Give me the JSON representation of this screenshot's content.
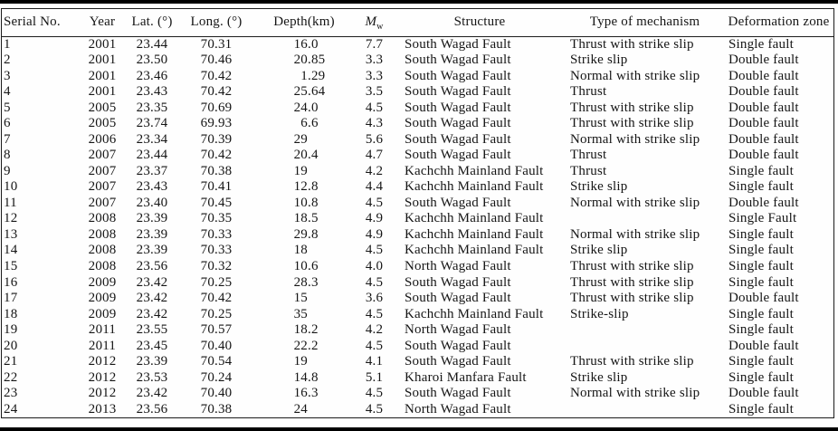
{
  "table": {
    "headers": {
      "serial": "Serial No.",
      "year": "Year",
      "lat": "Lat. (°)",
      "long": "Long. (°)",
      "depth": "Depth(km)",
      "mw_main": "M",
      "mw_sub": "w",
      "structure": "Structure",
      "mechanism": "Type of mechanism",
      "deformation": "Deformation zone"
    },
    "rows": [
      {
        "serial": "1",
        "year": "2001",
        "lat": "23.44",
        "long": "70.31",
        "depth": "16.0",
        "mw": "7.7",
        "structure": "South Wagad Fault",
        "mechanism": "Thrust with strike slip",
        "deformation": "Single fault"
      },
      {
        "serial": "2",
        "year": "2001",
        "lat": "23.50",
        "long": "70.46",
        "depth": "20.85",
        "mw": "3.3",
        "structure": "South Wagad Fault",
        "mechanism": "Strike slip",
        "deformation": "Double fault"
      },
      {
        "serial": "3",
        "year": "2001",
        "lat": "23.46",
        "long": "70.42",
        "depth": "1.29",
        "mw": "3.3",
        "structure": "South Wagad Fault",
        "mechanism": "Normal with strike slip",
        "deformation": "Double fault"
      },
      {
        "serial": "4",
        "year": "2001",
        "lat": "23.43",
        "long": "70.42",
        "depth": "25.64",
        "mw": "3.5",
        "structure": "South Wagad Fault",
        "mechanism": "Thrust",
        "deformation": "Double fault"
      },
      {
        "serial": "5",
        "year": "2005",
        "lat": "23.35",
        "long": "70.69",
        "depth": "24.0",
        "mw": "4.5",
        "structure": "South Wagad Fault",
        "mechanism": "Thrust with strike slip",
        "deformation": "Double fault"
      },
      {
        "serial": "6",
        "year": "2005",
        "lat": "23.74",
        "long": "69.93",
        "depth": "6.6",
        "mw": "4.3",
        "structure": "South Wagad Fault",
        "mechanism": "Thrust with strike slip",
        "deformation": "Double fault"
      },
      {
        "serial": "7",
        "year": "2006",
        "lat": "23.34",
        "long": "70.39",
        "depth": "29",
        "mw": "5.6",
        "structure": "South Wagad Fault",
        "mechanism": "Normal with strike slip",
        "deformation": "Double fault"
      },
      {
        "serial": "8",
        "year": "2007",
        "lat": "23.44",
        "long": "70.42",
        "depth": "20.4",
        "mw": "4.7",
        "structure": "South Wagad Fault",
        "mechanism": "Thrust",
        "deformation": "Double fault"
      },
      {
        "serial": "9",
        "year": "2007",
        "lat": "23.37",
        "long": "70.38",
        "depth": "19",
        "mw": "4.2",
        "structure": "Kachchh Mainland Fault",
        "mechanism": "Thrust",
        "deformation": "Single fault"
      },
      {
        "serial": "10",
        "year": "2007",
        "lat": "23.43",
        "long": "70.41",
        "depth": "12.8",
        "mw": "4.4",
        "structure": "Kachchh Mainland Fault",
        "mechanism": "Strike slip",
        "deformation": "Single fault"
      },
      {
        "serial": "11",
        "year": "2007",
        "lat": "23.40",
        "long": "70.45",
        "depth": "10.8",
        "mw": "4.5",
        "structure": "South Wagad Fault",
        "mechanism": "Normal with strike slip",
        "deformation": "Double fault"
      },
      {
        "serial": "12",
        "year": "2008",
        "lat": "23.39",
        "long": "70.35",
        "depth": "18.5",
        "mw": "4.9",
        "structure": "Kachchh Mainland Fault",
        "mechanism": "",
        "deformation": "Single Fault"
      },
      {
        "serial": "13",
        "year": "2008",
        "lat": "23.39",
        "long": "70.33",
        "depth": "29.8",
        "mw": "4.9",
        "structure": "Kachchh Mainland Fault",
        "mechanism": "Normal with strike slip",
        "deformation": "Single fault"
      },
      {
        "serial": "14",
        "year": "2008",
        "lat": "23.39",
        "long": "70.33",
        "depth": "18",
        "mw": "4.5",
        "structure": "Kachchh Mainland Fault",
        "mechanism": "Strike slip",
        "deformation": "Single fault"
      },
      {
        "serial": "15",
        "year": "2008",
        "lat": "23.56",
        "long": "70.32",
        "depth": "10.6",
        "mw": "4.0",
        "structure": "North Wagad Fault",
        "mechanism": "Thrust with strike slip",
        "deformation": "Single fault"
      },
      {
        "serial": "16",
        "year": "2009",
        "lat": "23.42",
        "long": "70.25",
        "depth": "28.3",
        "mw": "4.5",
        "structure": "South Wagad Fault",
        "mechanism": "Thrust with strike slip",
        "deformation": "Single fault"
      },
      {
        "serial": "17",
        "year": "2009",
        "lat": "23.42",
        "long": "70.42",
        "depth": "15",
        "mw": "3.6",
        "structure": "South Wagad Fault",
        "mechanism": "Thrust with strike slip",
        "deformation": "Double fault"
      },
      {
        "serial": "18",
        "year": "2009",
        "lat": "23.42",
        "long": "70.25",
        "depth": "35",
        "mw": "4.5",
        "structure": "Kachchh Mainland Fault",
        "mechanism": "Strike-slip",
        "deformation": "Single fault"
      },
      {
        "serial": "19",
        "year": "2011",
        "lat": "23.55",
        "long": "70.57",
        "depth": "18.2",
        "mw": "4.2",
        "structure": "North Wagad Fault",
        "mechanism": "",
        "deformation": "Single fault"
      },
      {
        "serial": "20",
        "year": "2011",
        "lat": "23.45",
        "long": "70.40",
        "depth": "22.2",
        "mw": "4.5",
        "structure": "South Wagad Fault",
        "mechanism": "",
        "deformation": "Double fault"
      },
      {
        "serial": "21",
        "year": "2012",
        "lat": "23.39",
        "long": "70.54",
        "depth": "19",
        "mw": "4.1",
        "structure": "South Wagad Fault",
        "mechanism": "Thrust with strike slip",
        "deformation": "Single fault"
      },
      {
        "serial": "22",
        "year": "2012",
        "lat": "23.53",
        "long": "70.24",
        "depth": "14.8",
        "mw": "5.1",
        "structure": "Kharoi Manfara Fault",
        "mechanism": "Strike slip",
        "deformation": "Single fault"
      },
      {
        "serial": "23",
        "year": "2012",
        "lat": "23.42",
        "long": "70.40",
        "depth": "16.3",
        "mw": "4.5",
        "structure": "South Wagad Fault",
        "mechanism": "Normal with strike slip",
        "deformation": "Double fault"
      },
      {
        "serial": "24",
        "year": "2013",
        "lat": "23.56",
        "long": "70.38",
        "depth": "24",
        "mw": "4.5",
        "structure": "North Wagad Fault",
        "mechanism": "",
        "deformation": "Single fault"
      }
    ]
  }
}
